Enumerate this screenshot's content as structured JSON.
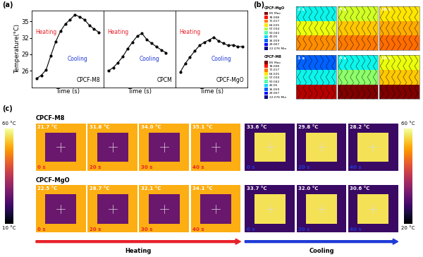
{
  "chart_data": [
    {
      "type": "line",
      "title": "CPCF-M8",
      "ylabel": "Temperature(°C)",
      "xlabel": "Time (s)",
      "x": [
        10,
        15,
        20,
        25,
        30,
        35,
        40,
        45,
        50,
        55,
        60,
        65,
        70,
        75
      ],
      "values": [
        24.6,
        25.2,
        26.2,
        28.8,
        31.3,
        33.2,
        34.5,
        35.3,
        36.2,
        35.8,
        35.3,
        34.3,
        33.6,
        33.0
      ],
      "xlim": [
        5,
        80
      ],
      "xticks": [],
      "ylim": [
        23,
        37
      ],
      "yticks": [
        26,
        29,
        32,
        35
      ],
      "tick_labels": "y",
      "color": "#000000",
      "marker": "o",
      "line_style": "solid",
      "annotations": [
        {
          "text": "Heating",
          "color": "#e8212b"
        },
        {
          "text": "Cooling",
          "color": "#1f3ad6"
        }
      ]
    },
    {
      "type": "line",
      "title": "CPCM",
      "xlabel": "Time (s)",
      "x": [
        10,
        15,
        20,
        25,
        30,
        35,
        40,
        45,
        50,
        55,
        60,
        65,
        70
      ],
      "values": [
        26.0,
        26.6,
        27.5,
        28.6,
        30.0,
        31.2,
        32.3,
        32.8,
        31.7,
        31.0,
        30.4,
        29.8,
        29.3
      ],
      "xlim": [
        5,
        80
      ],
      "xticks": [],
      "ylim": [
        23,
        37
      ],
      "yticks": [],
      "tick_labels": false,
      "color": "#000000",
      "marker": "o",
      "line_style": "solid",
      "annotations": [
        {
          "text": "Heating",
          "color": "#e8212b"
        },
        {
          "text": "Cooling",
          "color": "#1f3ad6"
        }
      ]
    },
    {
      "type": "line",
      "title": "CPCF-MgO",
      "xlabel": "Time (s)",
      "x": [
        10,
        15,
        20,
        25,
        30,
        35,
        40,
        45,
        50,
        55,
        60,
        65,
        70,
        75
      ],
      "values": [
        25.8,
        27.3,
        28.5,
        29.6,
        30.6,
        31.2,
        31.6,
        32.1,
        31.4,
        31.0,
        30.6,
        30.7,
        30.4,
        30.4
      ],
      "xlim": [
        5,
        80
      ],
      "xticks": [],
      "ylim": [
        23,
        37
      ],
      "yticks": [],
      "tick_labels": false,
      "color": "#000000",
      "marker": "o",
      "line_style": "solid",
      "annotations": [
        {
          "text": "Heating",
          "color": "#e8212b"
        },
        {
          "text": "Cooling",
          "color": "#1f3ad6"
        }
      ]
    }
  ],
  "panel_labels": [
    "(a)",
    "(b)",
    "(c)"
  ],
  "panel_b": {
    "legend_levels": [
      {
        "value": 85,
        "label": "85 Max"
      },
      78.008,
      71.017,
      64.025,
      57.034,
      50.042,
      43.05,
      36.059,
      29.067,
      {
        "value": 22.076,
        "label": "22.076 Min"
      }
    ],
    "rows": [
      {
        "name": "CPCF-MgO",
        "frames": [
          {
            "time": "1 s",
            "bands": [
              70,
              62,
              45
            ]
          },
          {
            "time": "5 s",
            "bands": [
              71,
              66,
              60
            ]
          },
          {
            "time": "10 s",
            "bands": [
              72,
              68,
              64
            ]
          }
        ]
      },
      {
        "name": "CPCF-M8",
        "frames": [
          {
            "time": "1 s",
            "bands": [
              82,
              45,
              36
            ]
          },
          {
            "time": "5 s",
            "bands": [
              85,
              55,
              45
            ]
          },
          {
            "time": "10 s",
            "bands": [
              85,
              66,
              62
            ]
          }
        ]
      }
    ]
  },
  "panel_c": {
    "scale_heating": {
      "top": "60 °C",
      "bottom": "10 °C"
    },
    "scale_cooling": {
      "top": "60 °C",
      "bottom": "20 °C"
    },
    "phases": [
      {
        "name": "Heating",
        "color": "#e8212b"
      },
      {
        "name": "Cooling",
        "color": "#1f3ad6"
      }
    ],
    "rows": [
      {
        "name": "CPCF-M8",
        "heating": [
          {
            "time": "0 s",
            "temp": "21.7 °C"
          },
          {
            "time": "20 s",
            "temp": "31.8 °C"
          },
          {
            "time": "30 s",
            "temp": "34.0 °C"
          },
          {
            "time": "40 s",
            "temp": "35.1 °C"
          }
        ],
        "cooling": [
          {
            "time": "0 s",
            "temp": "33.6 °C"
          },
          {
            "time": "20 s",
            "temp": "29.8 °C"
          },
          {
            "time": "40 s",
            "temp": "28.2 °C"
          }
        ]
      },
      {
        "name": "CPCF-MgO",
        "heating": [
          {
            "time": "0 s",
            "temp": "22.5 °C"
          },
          {
            "time": "20 s",
            "temp": "28.7 °C"
          },
          {
            "time": "30 s",
            "temp": "32.1 °C"
          },
          {
            "time": "40 s",
            "temp": "34.1 °C"
          }
        ],
        "cooling": [
          {
            "time": "0 s",
            "temp": "33.7 °C"
          },
          {
            "time": "20 s",
            "temp": "32.0 °C"
          },
          {
            "time": "40 s",
            "temp": "30.6 °C"
          }
        ]
      }
    ]
  }
}
